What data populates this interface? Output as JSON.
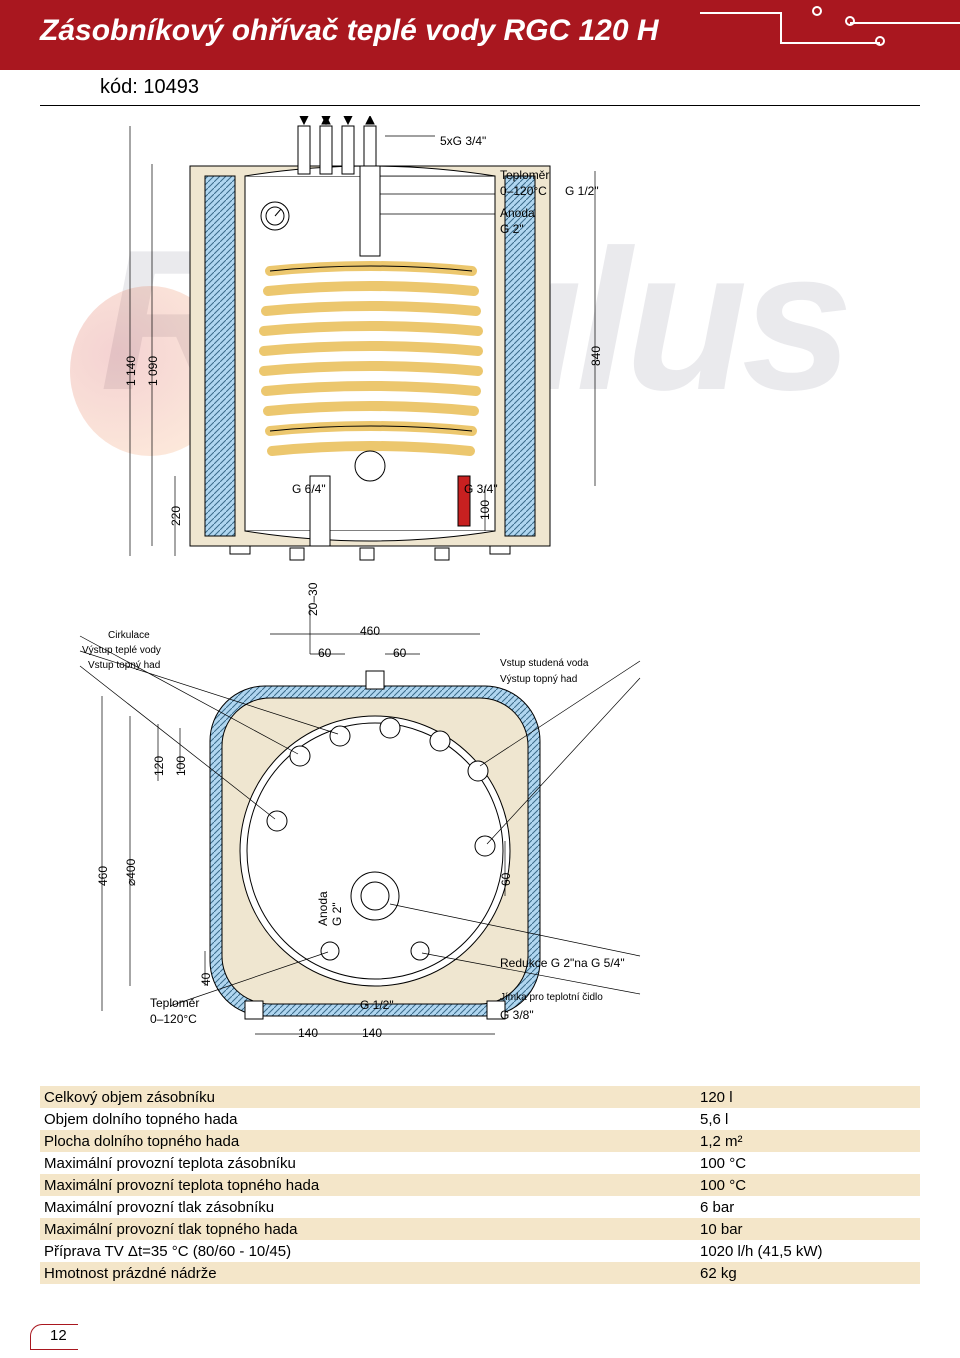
{
  "header": {
    "title": "Zásobníkový ohřívač teplé vody RGC 120 H",
    "subcode": "kód: 10493"
  },
  "watermark_text": "Regulus",
  "diagram": {
    "top_view": {
      "label_5xg": "5xG 3/4\"",
      "label_teplomer": "Teploměr",
      "label_teplomer_range": "0–120°C",
      "label_teplomer_g": "G 1/2\"",
      "label_anoda": "Anoda",
      "label_anoda_g": "G 2\"",
      "dim_1140": "1 140",
      "dim_1090": "1 090",
      "dim_840": "840",
      "dim_220": "220",
      "dim_100": "100",
      "label_g64": "G 6/4\"",
      "label_g34": "G 3/4\""
    },
    "bottom_view": {
      "dim_2030": "20–30",
      "dim_460_top": "460",
      "dim_60a": "60",
      "dim_60b": "60",
      "label_cirkulace": "Cirkulace",
      "label_vystup_tv": "Výstup teplé vody",
      "label_vstup_th": "Vstup topný had",
      "label_vstup_sv": "Vstup studená voda",
      "label_vystup_th": "Výstup topný had",
      "dim_460_left": "460",
      "dim_400": "⌀400",
      "dim_120": "120",
      "dim_100": "100",
      "dim_40": "40",
      "dim_60c": "60",
      "label_anoda2": "Anoda",
      "label_anoda2_g": "G 2\"",
      "label_teplomer2": "Teploměr",
      "label_teplomer2_range": "0–120°C",
      "dim_140a": "140",
      "dim_140b": "140",
      "label_g12": "G 1/2\"",
      "label_redukce": "Redukce G 2\"na G 5/4\"",
      "label_jimka": "Jímka pro teplotní čidlo",
      "label_g38": "G 3/8\""
    },
    "colors": {
      "outline": "#000000",
      "wall_fill": "#b0d6f0",
      "wall_hatch": "#3a6a8a",
      "insulation_fill": "#efe6d0",
      "coil": "#ecc76e",
      "pipe_red": "#c82020",
      "thin_line": "#000000"
    }
  },
  "specs": {
    "rows": [
      {
        "label": "Celkový objem zásobníku",
        "value": "120 l"
      },
      {
        "label": "Objem dolního topného hada",
        "value": "5,6 l"
      },
      {
        "label": "Plocha dolního topného hada",
        "value": "1,2 m²"
      },
      {
        "label": "Maximální provozní teplota zásobníku",
        "value": "100 °C"
      },
      {
        "label": "Maximální provozní teplota topného hada",
        "value": "100 °C"
      },
      {
        "label": "Maximální provozní tlak zásobníku",
        "value": "6 bar"
      },
      {
        "label": "Maximální provozní tlak topného hada",
        "value": "10 bar"
      },
      {
        "label": "Příprava TV Δt=35 °C (80/60 - 10/45)",
        "value": "1020 l/h (41,5 kW)"
      },
      {
        "label": "Hmotnost prázdné nádrže",
        "value": "62 kg"
      }
    ]
  },
  "page_number": "12"
}
